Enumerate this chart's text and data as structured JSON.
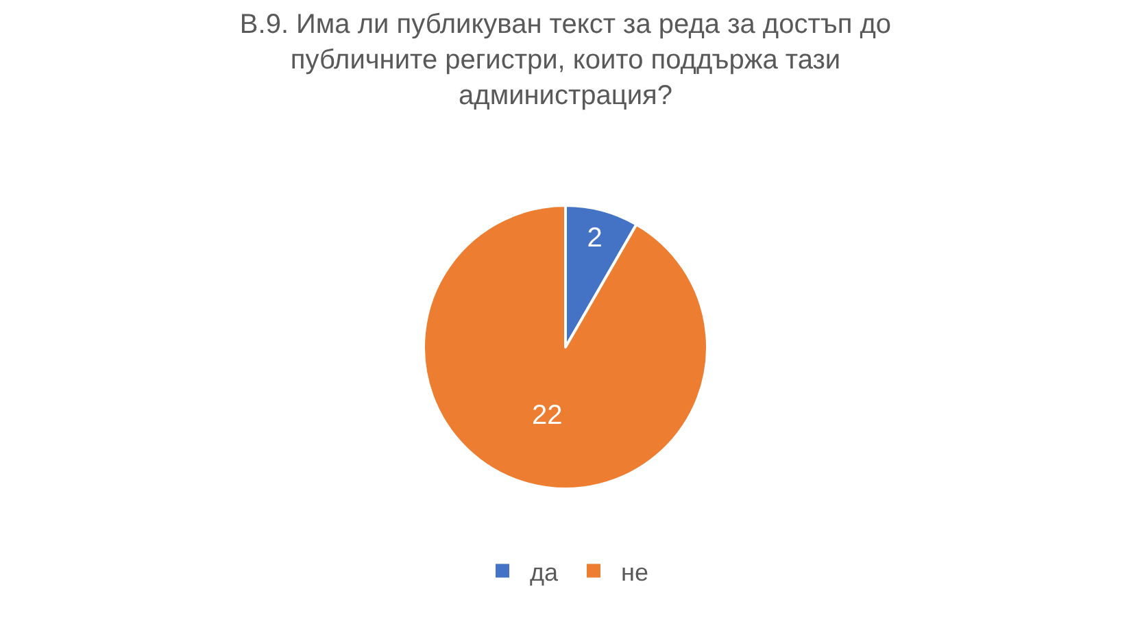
{
  "chart_data": {
    "type": "pie",
    "title": "В.9. Има ли публикуван текст за реда за достъп до публичните регистри, които поддържа тази администрация?",
    "categories": [
      "да",
      "не"
    ],
    "values": [
      2,
      22
    ],
    "colors": [
      "#4472c4",
      "#ed7d31"
    ],
    "data_labels": true,
    "legend": "bottom"
  }
}
